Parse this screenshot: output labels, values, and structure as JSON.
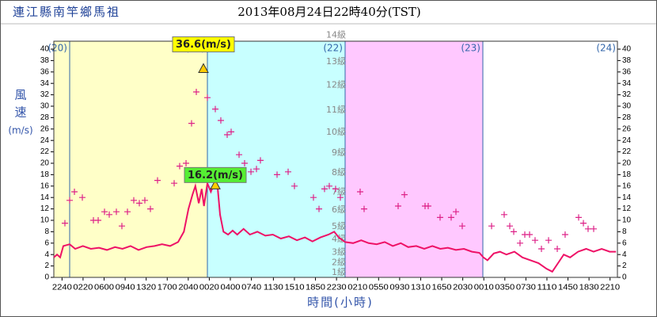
{
  "chart_data": {
    "type": "line",
    "station": "連江縣南竿鄉馬祖",
    "title": "2013年08月24日22時40分(TST)",
    "ylabel_chars": [
      "風",
      "速",
      "(m/s)"
    ],
    "xlabel": "時間(小時)",
    "xlim": [
      -2.76,
      95.45
    ],
    "ylim": [
      0,
      40
    ],
    "yticks": [
      0,
      2,
      4,
      6,
      8,
      10,
      12,
      14,
      16,
      18,
      20,
      22,
      24,
      26,
      28,
      30,
      32,
      34,
      36,
      38,
      40
    ],
    "xticks": [
      {
        "value": -1.333,
        "label": "2240"
      },
      {
        "value": 2.333,
        "label": "0220"
      },
      {
        "value": 6,
        "label": "0600"
      },
      {
        "value": 9.667,
        "label": "0940"
      },
      {
        "value": 13.333,
        "label": "1320"
      },
      {
        "value": 17,
        "label": "1700"
      },
      {
        "value": 20.667,
        "label": "2040"
      },
      {
        "value": 24.333,
        "label": "0020"
      },
      {
        "value": 28,
        "label": "0400"
      },
      {
        "value": 31.667,
        "label": "0740"
      },
      {
        "value": 35.5,
        "label": "1130"
      },
      {
        "value": 39.167,
        "label": "1510"
      },
      {
        "value": 42.833,
        "label": "1850"
      },
      {
        "value": 46.5,
        "label": "2230"
      },
      {
        "value": 50.167,
        "label": "0210"
      },
      {
        "value": 53.833,
        "label": "0550"
      },
      {
        "value": 57.5,
        "label": "0930"
      },
      {
        "value": 61.167,
        "label": "1310"
      },
      {
        "value": 64.833,
        "label": "1650"
      },
      {
        "value": 68.5,
        "label": "2030"
      },
      {
        "value": 72.167,
        "label": "0010"
      },
      {
        "value": 75.833,
        "label": "0350"
      },
      {
        "value": 79.5,
        "label": "0730"
      },
      {
        "value": 83.167,
        "label": "1110"
      },
      {
        "value": 86.833,
        "label": "1450"
      },
      {
        "value": 90.5,
        "label": "1830"
      },
      {
        "value": 94.167,
        "label": "2210"
      }
    ],
    "days": [
      {
        "value": 0,
        "label": "(20)"
      },
      {
        "value": 24,
        "label": "(21)"
      },
      {
        "value": 48,
        "label": "(22)"
      },
      {
        "value": 72,
        "label": "(23)"
      },
      {
        "value": 96,
        "label": "(24)"
      }
    ],
    "band_colors": [
      "#ffffc8",
      "#c8ffff",
      "#ffc8ff",
      "#ffffff"
    ],
    "separator_color": "#3366aa",
    "beaufort": [
      {
        "value": 0.8,
        "label": "1級"
      },
      {
        "value": 2.6,
        "label": "2級"
      },
      {
        "value": 4.4,
        "label": "3級"
      },
      {
        "value": 6.7,
        "label": "4級"
      },
      {
        "value": 8.9,
        "label": "5級"
      },
      {
        "value": 11.8,
        "label": "6級"
      },
      {
        "value": 14.9,
        "label": "7級"
      },
      {
        "value": 18.3,
        "label": "8級"
      },
      {
        "value": 21.8,
        "label": "9級"
      },
      {
        "value": 25.4,
        "label": "10級"
      },
      {
        "value": 29.3,
        "label": "11級"
      },
      {
        "value": 33.7,
        "label": "12級"
      },
      {
        "value": 37.8,
        "label": "13級"
      },
      {
        "value": 42.4,
        "label": "14級"
      }
    ],
    "series": [
      {
        "mark": "line",
        "color": "#ee1166",
        "x": [
          -2.76,
          -2.2,
          -1.66,
          -1.1,
          0,
          0.97,
          2.3,
          3.7,
          5.1,
          6.5,
          7.9,
          9.2,
          10.6,
          12,
          13.4,
          14.8,
          16.1,
          17.5,
          18.9,
          19.9,
          20.7,
          21.4,
          21.9,
          22.5,
          23,
          23.4,
          24,
          24.6,
          25.1,
          25.8,
          26.2,
          26.8,
          27.6,
          28.4,
          29.2,
          30.3,
          31.4,
          32.7,
          34.1,
          35.4,
          36.8,
          38.2,
          39.6,
          41,
          42.3,
          43.7,
          45.1,
          46.1,
          46.9,
          48,
          49.4,
          50.8,
          52.1,
          53.5,
          54.9,
          56.3,
          57.7,
          59,
          60.4,
          61.8,
          63.2,
          64.6,
          65.9,
          67.3,
          68.7,
          70.1,
          71.4,
          72.1,
          72.8,
          73.9,
          75,
          76.1,
          77.5,
          78.9,
          80.3,
          81.7,
          83.1,
          84.1,
          85.1,
          86.1,
          87.2,
          88.6,
          90,
          91.3,
          92.7,
          94.1,
          95.2
        ],
        "values": [
          3.5,
          4,
          3.5,
          5.5,
          5.8,
          5,
          5.5,
          5,
          5.2,
          4.8,
          5.3,
          5,
          5.5,
          4.8,
          5.3,
          5.5,
          5.8,
          5.5,
          6.2,
          8,
          12,
          14.5,
          16,
          13,
          15.5,
          12.5,
          16.5,
          15,
          16.2,
          15.5,
          11,
          8,
          7.5,
          8.2,
          7.5,
          8.5,
          7.5,
          8,
          7.3,
          7.5,
          6.8,
          7.2,
          6.5,
          7,
          6.3,
          7,
          7.5,
          8,
          7,
          6.2,
          6,
          6.5,
          6,
          5.8,
          6.2,
          5.5,
          6,
          5.3,
          5.5,
          5,
          5.5,
          5,
          5.2,
          4.8,
          5,
          4.5,
          4.3,
          3.5,
          3,
          4.2,
          4.5,
          4,
          4.5,
          3.5,
          3,
          2.5,
          1.5,
          1,
          2.5,
          4,
          3.5,
          4.5,
          5,
          4.5,
          5,
          4.5,
          4.5
        ]
      },
      {
        "mark": "plus",
        "color": "#dd2288",
        "x": [
          -0.83,
          0,
          0.83,
          2.21,
          4.14,
          4.97,
          6.07,
          6.9,
          8.14,
          9.1,
          10.07,
          11.17,
          12.14,
          13.1,
          14.07,
          15.31,
          18.21,
          19.17,
          20.28,
          21.24,
          22.07,
          24,
          25.38,
          26.34,
          27.45,
          28.14,
          29.52,
          30.48,
          31.59,
          32.55,
          33.24,
          36.14,
          38.07,
          39.17,
          42.48,
          43.45,
          44.41,
          45.24,
          46.34,
          47.17,
          50.62,
          51.31,
          57.24,
          58.34,
          61.93,
          62.48,
          64.55,
          66.48,
          67.31,
          68.41,
          73.52,
          75.72,
          76.69,
          77.38,
          78.48,
          79.31,
          80.14,
          81.1,
          82.21,
          83.45,
          84.97,
          86.34,
          88.69,
          89.52,
          90.34,
          91.31
        ],
        "values": [
          9.5,
          13.5,
          15,
          14,
          10,
          10,
          11.5,
          11,
          11.5,
          9,
          11.5,
          13.5,
          13,
          13.5,
          12,
          17,
          16.5,
          19.5,
          20,
          27,
          32.5,
          31.5,
          29.5,
          27.5,
          25,
          25.5,
          21.5,
          20,
          18.5,
          19,
          20.5,
          18,
          18.5,
          16,
          14,
          12,
          15.5,
          16,
          15.5,
          14,
          15,
          12,
          12.5,
          14.5,
          12.5,
          12.5,
          10.5,
          10.5,
          11.5,
          9,
          9,
          11,
          9,
          8,
          6,
          7.5,
          7.5,
          6.5,
          5,
          6.5,
          5,
          7.5,
          10.5,
          9.5,
          8.5,
          8.5
        ]
      }
    ],
    "annotations": [
      {
        "x": 23.31,
        "value": 36.6,
        "label": "36.6(m/s)",
        "color": "#ffff00"
      },
      {
        "x": 25.38,
        "value": 16.2,
        "label": "16.2(m/s)",
        "color": "#55ee33"
      }
    ]
  }
}
